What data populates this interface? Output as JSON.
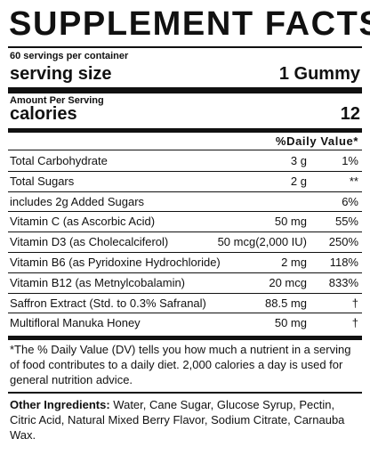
{
  "title": "SUPPLEMENT FACTS",
  "servings_per_container": "60 servings per container",
  "serving_size_label": "serving size",
  "serving_size_value": "1 Gummy",
  "amount_per_serving": "Amount Per Serving",
  "calories_label": "calories",
  "calories_value": "12",
  "daily_value_header": "%Daily Value*",
  "nutrients": [
    {
      "name": "Total Carbohydrate",
      "amount": "3 g",
      "dv": "1%"
    },
    {
      "name": "Total Sugars",
      "amount": "2 g",
      "dv": "**"
    },
    {
      "name": "includes 2g Added Sugars",
      "amount": "",
      "dv": "6%"
    },
    {
      "name": "Vitamin C (as Ascorbic Acid)",
      "amount": "50 mg",
      "dv": "55%"
    },
    {
      "name": "Vitamin D3 (as Cholecalciferol)",
      "amount": "50 mcg(2,000 IU)",
      "dv": "250%"
    },
    {
      "name": "Vitamin B6 (as Pyridoxine Hydrochloride)",
      "amount": "2 mg",
      "dv": "118%"
    },
    {
      "name": "Vitamin B12 (as Metnylcobalamin)",
      "amount": "20 mcg",
      "dv": "833%"
    },
    {
      "name": "Saffron Extract (Std. to 0.3% Safranal)",
      "amount": "88.5 mg",
      "dv": "†"
    },
    {
      "name": "Multifloral Manuka Honey",
      "amount": "50 mg",
      "dv": "†"
    }
  ],
  "footnote": "*The % Daily Value (DV) tells you how much a nutrient in a serving of food contributes to a daily diet. 2,000 calories a day is used for general nutrition advice.",
  "ingredients_label": "Other Ingredients:",
  "ingredients_text": " Water, Cane Sugar, Glucose Syrup, Pectin, Citric Acid,  Natural Mixed Berry Flavor, Sodium Citrate, Carnauba Wax."
}
